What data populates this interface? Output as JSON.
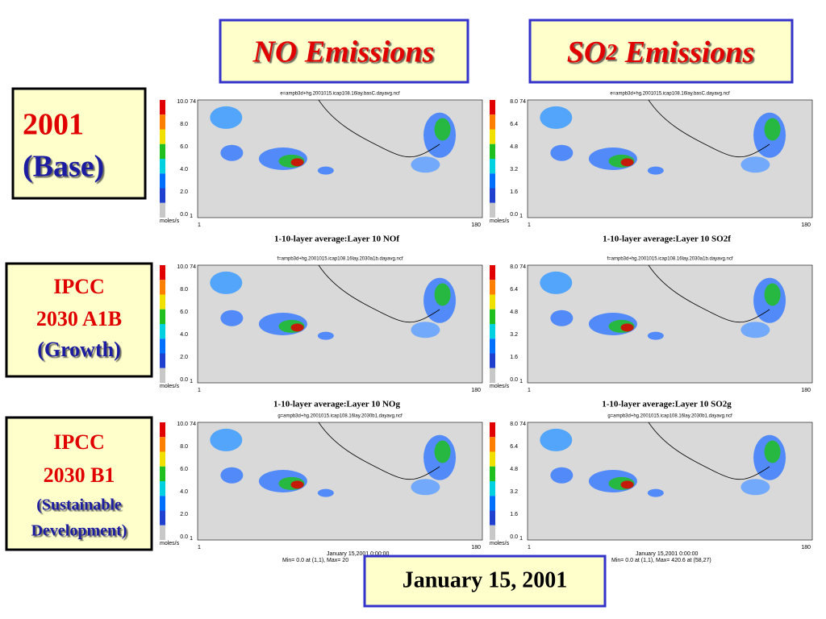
{
  "header": {
    "columns": [
      {
        "text": "NO Emissions"
      },
      {
        "text": "SO",
        "sub": "2",
        "rest": " Emissions"
      }
    ]
  },
  "rows": [
    {
      "lines": [
        "2001",
        "(Base)"
      ]
    },
    {
      "lines": [
        "IPCC",
        "2030 A1B",
        "(Growth)"
      ]
    },
    {
      "lines": [
        "IPCC",
        "2030 B1",
        "(Sustainable",
        "Development)"
      ]
    }
  ],
  "panels": [
    {
      "file": "e=ampb3d+hg.2001015.icap108.16lay.basC.dayavg.ncf",
      "caption": "1-10-layer average:Layer 10  NOf",
      "ticks": [
        "10.0",
        "8.0",
        "6.0",
        "4.0",
        "2.0",
        "0.0"
      ]
    },
    {
      "file": "e=ampb3d+hg.2001015.icap108.16lay.basC.dayavg.ncf",
      "caption": "1-10-layer average:Layer 10  SO2f",
      "ticks": [
        "8.0",
        "6.4",
        "4.8",
        "3.2",
        "1.6",
        "0.0"
      ]
    },
    {
      "file": "f=ampb3d+hg.2001015.icap108.16lay.2030a1b.dayavg.ncf",
      "caption": "1-10-layer average:Layer 10  NOg",
      "ticks": [
        "10.0",
        "8.0",
        "6.0",
        "4.0",
        "2.0",
        "0.0"
      ]
    },
    {
      "file": "f=ampb3d+hg.2001015.icap108.16lay.2030a1b.dayavg.ncf",
      "caption": "1-10-layer average:Layer 10  SO2g",
      "ticks": [
        "8.0",
        "6.4",
        "4.8",
        "3.2",
        "1.6",
        "0.0"
      ]
    },
    {
      "file": "g=ampb3d+hg.2001015.icap108.16lay.2030b1.dayavg.ncf",
      "ticks": [
        "10.0",
        "8.0",
        "6.0",
        "4.0",
        "2.0",
        "0.0"
      ]
    },
    {
      "file": "g=ampb3d+hg.2001015.icap108.16lay.2030b1.dayavg.ncf",
      "ticks": [
        "8.0",
        "6.4",
        "4.8",
        "3.2",
        "1.6",
        "0.0"
      ]
    }
  ],
  "axis": {
    "unit": "moles/s",
    "y_top": "74",
    "y_bottom": "1",
    "x_left": "1",
    "x_right": "180"
  },
  "footer": {
    "time_left": "January 15,2001 0:00:00",
    "minmax_left": "Min=    0.0 at (1,1), Max=    20",
    "time_right": "January 15,2001 0:00:00",
    "minmax_right": "Min=    0.0 at (1,1), Max=    420.6 at (58,27)",
    "date": "January 15, 2001"
  }
}
